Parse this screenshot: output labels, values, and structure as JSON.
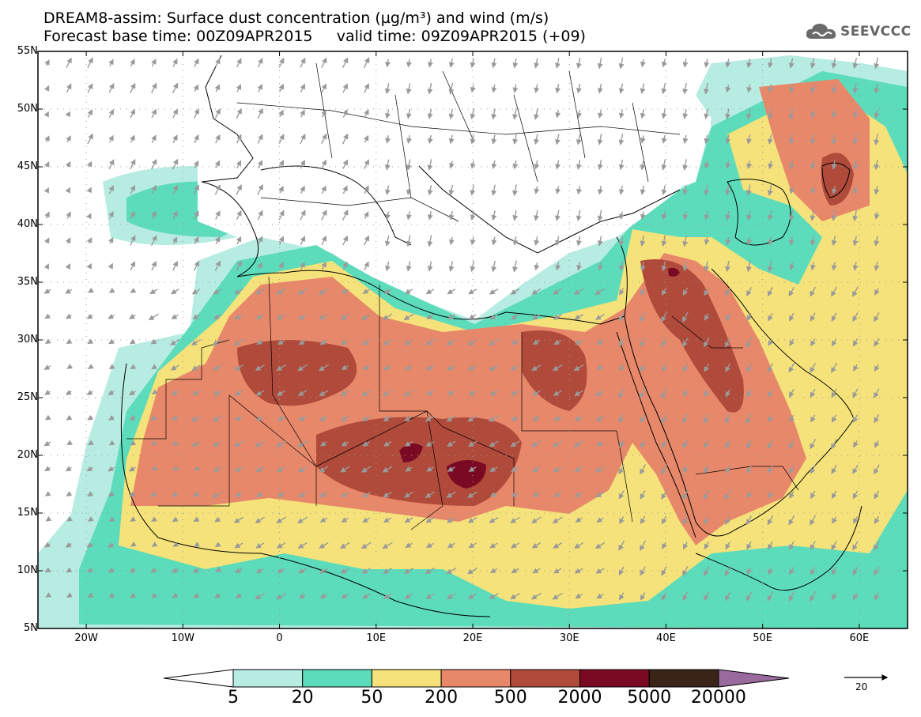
{
  "title": {
    "line1": "DREAM8-assim: Surface dust concentration (µg/m³) and wind (m/s)",
    "line2": "Forecast base time: 00Z09APR2015     valid time: 09Z09APR2015 (+09)"
  },
  "logo": {
    "text": "SEEVCCC",
    "icon": "cloud-icon"
  },
  "map": {
    "projection": "lat-lon",
    "lon_range": [
      -25,
      65
    ],
    "lat_range": [
      5,
      55
    ],
    "lat_ticks": [
      "55N",
      "50N",
      "45N",
      "40N",
      "35N",
      "30N",
      "25N",
      "20N",
      "15N",
      "10N",
      "5N"
    ],
    "lon_ticks": [
      "20W",
      "10W",
      "0",
      "10E",
      "20E",
      "30E",
      "40E",
      "50E",
      "60E"
    ]
  },
  "legend": {
    "levels": [
      "5",
      "20",
      "50",
      "200",
      "500",
      "2000",
      "5000",
      "20000"
    ],
    "colors": [
      "#ffffff",
      "#b7ece2",
      "#5cdcba",
      "#f5e27a",
      "#e8886a",
      "#b04a3a",
      "#7a0a24",
      "#3a2418",
      "#9a6a9e"
    ]
  },
  "wind_reference": {
    "value": "20",
    "unit": "m/s"
  }
}
